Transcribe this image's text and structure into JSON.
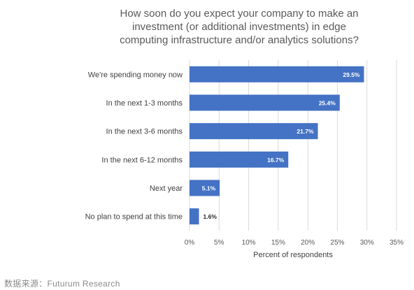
{
  "chart_data": {
    "type": "bar",
    "orientation": "horizontal",
    "title_lines": [
      "How soon do you expect your company to make an",
      "investment (or additional investments) in edge",
      "computing infrastructure and/or analytics solutions?"
    ],
    "categories": [
      "We're spending money now",
      "In the next 1-3 months",
      "In the next 3-6 months",
      "In the next 6-12 months",
      "Next year",
      "No plan to spend at this time"
    ],
    "values": [
      29.5,
      25.4,
      21.7,
      16.7,
      5.1,
      1.6
    ],
    "data_labels": [
      "29.5%",
      "25.4%",
      "21.7%",
      "16.7%",
      "5.1%",
      "1.6%"
    ],
    "xlabel": "Percent of respondents",
    "xlim": [
      0,
      35
    ],
    "xticks": [
      0,
      5,
      10,
      15,
      20,
      25,
      30,
      35
    ],
    "xtick_labels": [
      "0%",
      "5%",
      "10%",
      "15%",
      "20%",
      "25%",
      "30%",
      "35%"
    ],
    "grid": "vertical",
    "bar_color": "#4472C4",
    "grid_color": "#D9D9D9"
  },
  "source": "数据来源：Futurum Research"
}
